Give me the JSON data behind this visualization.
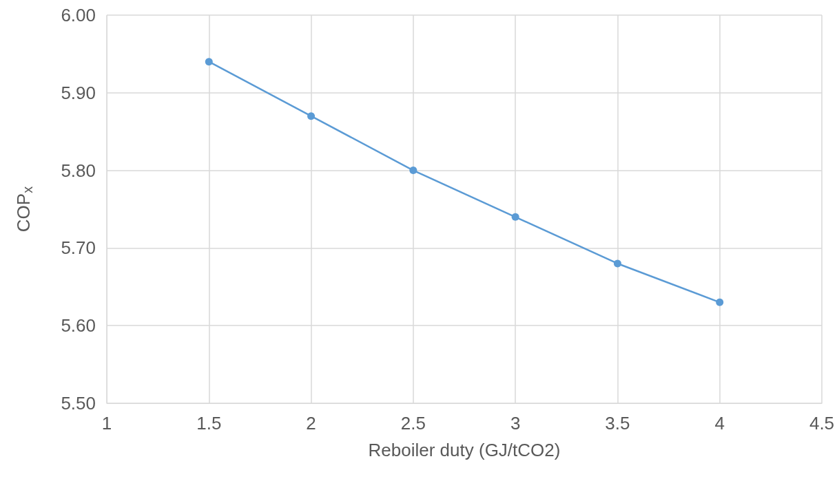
{
  "chart_data": {
    "type": "line",
    "xlabel": "Reboiler duty (GJ/tCO2)",
    "ylabel": "COP$_{x}$",
    "x": [
      1.5,
      2,
      2.5,
      3,
      3.5,
      4
    ],
    "series": [
      {
        "color": "#5b9bd5",
        "values": [
          5.94,
          5.87,
          5.8,
          5.74,
          5.68,
          5.63
        ]
      }
    ],
    "xlim": [
      1,
      4.5
    ],
    "xticks": [
      1,
      1.5,
      2,
      2.5,
      3,
      3.5,
      4,
      4.5
    ],
    "ylim": [
      5.5,
      6.0
    ],
    "yticks": [
      {
        "value": 5.5,
        "label": "5.50"
      },
      {
        "value": 5.6,
        "label": "5.60"
      },
      {
        "value": 5.7,
        "label": "5.70"
      },
      {
        "value": 5.8,
        "label": "5.80"
      },
      {
        "value": 5.9,
        "label": "5.90"
      },
      {
        "value": 6.0,
        "label": "6.00"
      }
    ],
    "grid": true,
    "marker": "circle",
    "line_style": "solid"
  }
}
